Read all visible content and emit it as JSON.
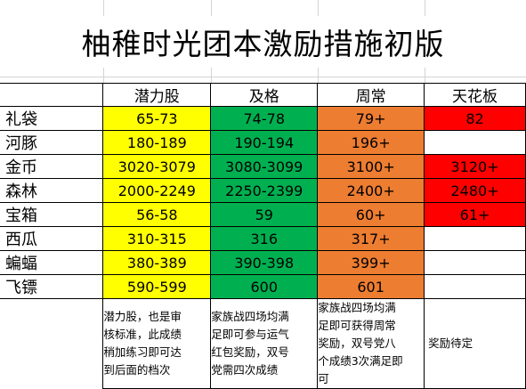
{
  "title": "柚稚时光团本激励措施初版",
  "headers": [
    "潜力股",
    "及格",
    "周常",
    "天花板"
  ],
  "rows": [
    {
      "label": "礼袋",
      "cells": [
        "65-73",
        "74-78",
        "79+",
        "82"
      ]
    },
    {
      "label": "河豚",
      "cells": [
        "180-189",
        "190-194",
        "196+",
        ""
      ]
    },
    {
      "label": "金币",
      "cells": [
        "3020-3079",
        "3080-3099",
        "3100+",
        "3120+"
      ]
    },
    {
      "label": "森林",
      "cells": [
        "2000-2249",
        "2250-2399",
        "2400+",
        "2480+"
      ]
    },
    {
      "label": "宝箱",
      "cells": [
        "56-58",
        "59",
        "60+",
        "61+"
      ]
    },
    {
      "label": "西瓜",
      "cells": [
        "310-315",
        "316",
        "317+",
        ""
      ]
    },
    {
      "label": "蝙蝠",
      "cells": [
        "380-389",
        "390-398",
        "399+",
        ""
      ]
    },
    {
      "label": "飞镖",
      "cells": [
        "590-599",
        "600",
        "601",
        ""
      ]
    }
  ],
  "notes": [
    "潜力股，也是审\n核标准，此成绩\n稍加练习即可达\n到后面的档次",
    "家族战四场均满\n足即可参与运气\n红包奖励，双号\n党需四次成绩",
    "家族战四场均满\n足即可获得周常\n奖励，双号党八\n个成绩3次满足即\n可",
    "奖励待定"
  ],
  "colors": {
    "潜力股": "#ffff00",
    "及格": "#00b050",
    "周常": "#ed7d31",
    "天花板": "#ff0000"
  }
}
